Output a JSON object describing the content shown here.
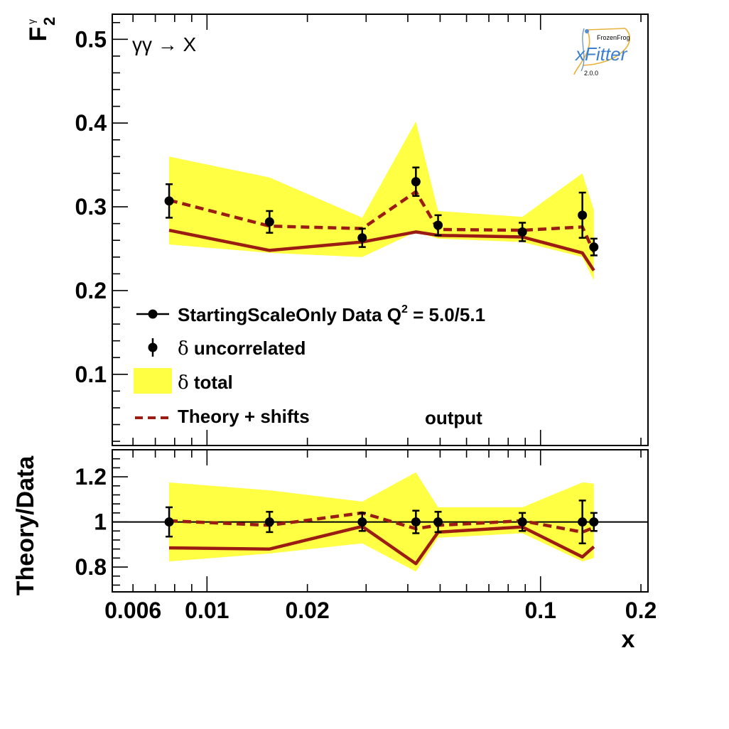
{
  "figure": {
    "process_label": "γγ → X",
    "logo": {
      "top": "FrozenFrog",
      "main": "xFitter",
      "version": "2.0.0"
    },
    "output_label": "output",
    "colors": {
      "band": "#ffff44",
      "theory": "#9a1c12",
      "points": "#000000",
      "axis": "#000000"
    }
  },
  "chart_data": [
    {
      "id": "main",
      "type": "line",
      "ylabel": "F2γ",
      "ylabel_main": "F",
      "ylabel_sub": "2",
      "ylabel_sup": "γ",
      "ylim": [
        0.015,
        0.53
      ],
      "xlim": [
        0.0052,
        0.21
      ],
      "xscale": "log",
      "yticks": [
        0.1,
        0.2,
        0.3,
        0.4,
        0.5
      ],
      "ytick_labels": [
        "0.1",
        "0.2",
        "0.3",
        "0.4",
        "0.5"
      ],
      "legend": {
        "position": "bottom-left",
        "entries": [
          {
            "marker": "line-point",
            "label": "StartingScaleOnly  Data Q",
            "sup": "2",
            "suffix": " = 5.0/5.1"
          },
          {
            "marker": "point",
            "symbol": "δ",
            "label": " uncorrelated"
          },
          {
            "marker": "band",
            "symbol": "δ",
            "label": " total"
          },
          {
            "marker": "dashed",
            "label": "Theory + shifts"
          }
        ]
      },
      "data": {
        "x": [
          0.0077,
          0.0154,
          0.0292,
          0.0423,
          0.0493,
          0.0882,
          0.1335,
          0.1445
        ],
        "y": [
          0.307,
          0.282,
          0.263,
          0.33,
          0.278,
          0.27,
          0.29,
          0.252
        ],
        "err": [
          0.02,
          0.013,
          0.011,
          0.017,
          0.012,
          0.011,
          0.027,
          0.01
        ]
      },
      "band": {
        "x": [
          0.0077,
          0.0154,
          0.0292,
          0.0423,
          0.0493,
          0.0882,
          0.1335,
          0.1445
        ],
        "upper": [
          0.36,
          0.335,
          0.287,
          0.402,
          0.295,
          0.288,
          0.34,
          0.296
        ],
        "lower": [
          0.255,
          0.245,
          0.24,
          0.27,
          0.262,
          0.258,
          0.24,
          0.212
        ]
      },
      "theory": {
        "name": "StartingScaleOnly",
        "x": [
          0.0077,
          0.0154,
          0.0292,
          0.0423,
          0.0493,
          0.0882,
          0.1335,
          0.1445
        ],
        "y": [
          0.272,
          0.248,
          0.258,
          0.27,
          0.266,
          0.264,
          0.245,
          0.224
        ]
      },
      "theory_shifted": {
        "name": "Theory + shifts",
        "x": [
          0.0077,
          0.0154,
          0.0292,
          0.0423,
          0.0493,
          0.0882,
          0.1335,
          0.1445
        ],
        "y": [
          0.308,
          0.277,
          0.274,
          0.318,
          0.273,
          0.272,
          0.276,
          0.246
        ]
      }
    },
    {
      "id": "ratio",
      "type": "line",
      "ylabel": "Theory/Data",
      "xlabel": "x",
      "ylim": [
        0.69,
        1.32
      ],
      "xlim": [
        0.0052,
        0.21
      ],
      "xscale": "log",
      "yticks": [
        0.8,
        1.0,
        1.2
      ],
      "ytick_labels": [
        "0.8",
        "1",
        "1.2"
      ],
      "xticks": [
        0.006,
        0.01,
        0.02,
        0.1,
        0.2
      ],
      "xtick_labels": [
        "0.006",
        "0.01",
        "0.02",
        "0.1",
        "0.2"
      ],
      "reference_line": 1.0,
      "data": {
        "x": [
          0.0077,
          0.0154,
          0.0292,
          0.0423,
          0.0493,
          0.0882,
          0.1335,
          0.1445
        ],
        "y": [
          1.0,
          1.0,
          1.0,
          1.0,
          1.0,
          1.0,
          1.0,
          1.0
        ],
        "err": [
          0.065,
          0.045,
          0.04,
          0.05,
          0.045,
          0.04,
          0.095,
          0.04
        ]
      },
      "band": {
        "x": [
          0.0077,
          0.0154,
          0.0292,
          0.0423,
          0.0493,
          0.0882,
          0.1335,
          0.1445
        ],
        "upper": [
          1.175,
          1.14,
          1.09,
          1.22,
          1.065,
          1.065,
          1.175,
          1.17
        ],
        "lower": [
          0.825,
          0.86,
          0.905,
          0.78,
          0.93,
          0.95,
          0.825,
          0.84
        ]
      },
      "theory": {
        "x": [
          0.0077,
          0.0154,
          0.0292,
          0.0423,
          0.0493,
          0.0882,
          0.1335,
          0.1445
        ],
        "y": [
          0.885,
          0.88,
          0.98,
          0.815,
          0.955,
          0.978,
          0.845,
          0.89
        ]
      },
      "theory_shifted": {
        "x": [
          0.0077,
          0.0154,
          0.0292,
          0.0423,
          0.0493,
          0.0882,
          0.1335,
          0.1445
        ],
        "y": [
          1.005,
          0.985,
          1.04,
          0.97,
          0.985,
          1.005,
          0.955,
          0.975
        ]
      }
    }
  ]
}
